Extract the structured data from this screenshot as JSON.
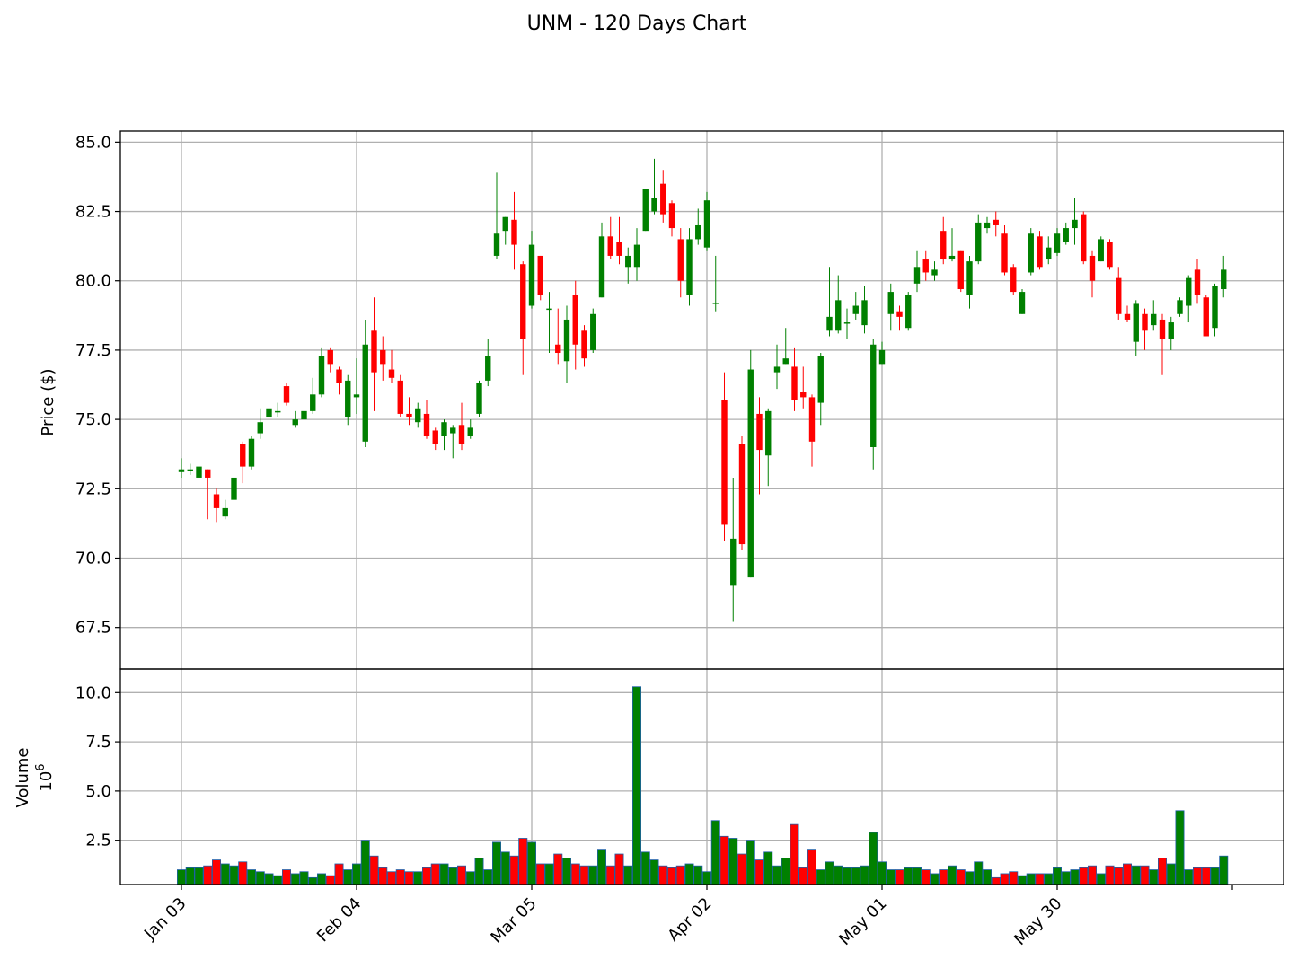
{
  "title": "UNM - 120 Days Chart",
  "colors": {
    "up": "#008000",
    "down": "#ff0000",
    "grid": "#b0b0b0",
    "axis": "#000000"
  },
  "chart_data": [
    {
      "type": "candlestick",
      "panel": "price",
      "ylabel": "Price ($)",
      "ylim": [
        66.0,
        85.4
      ],
      "yticks": [
        67.5,
        70.0,
        72.5,
        75.0,
        77.5,
        80.0,
        82.5,
        85.0
      ],
      "ytick_labels": [
        "67.5",
        "70.0",
        "72.5",
        "75.0",
        "77.5",
        "80.0",
        "82.5",
        "85.0"
      ],
      "x_tick_labels": [
        "Jan 03",
        "Feb 04",
        "Mar 05",
        "Apr 02",
        "May 01",
        "May 30"
      ],
      "x_tick_index": [
        0,
        20,
        40,
        60,
        80,
        100
      ],
      "grid": true,
      "candles": [
        [
          73.1,
          73.2,
          72.9,
          73.6
        ],
        [
          73.2,
          73.2,
          73.0,
          73.4
        ],
        [
          72.9,
          73.3,
          72.8,
          73.7
        ],
        [
          73.2,
          72.9,
          71.4,
          73.2
        ],
        [
          72.3,
          71.8,
          71.3,
          72.5
        ],
        [
          71.5,
          71.8,
          71.4,
          72.1
        ],
        [
          72.1,
          72.9,
          72.0,
          73.1
        ],
        [
          74.1,
          73.3,
          72.7,
          74.2
        ],
        [
          73.3,
          74.3,
          73.2,
          74.4
        ],
        [
          74.5,
          74.9,
          74.3,
          75.4
        ],
        [
          75.1,
          75.4,
          75.0,
          75.8
        ],
        [
          75.3,
          75.3,
          75.1,
          75.6
        ],
        [
          76.2,
          75.6,
          75.5,
          76.3
        ],
        [
          74.8,
          75.0,
          74.7,
          75.3
        ],
        [
          75.0,
          75.3,
          74.7,
          75.4
        ],
        [
          75.3,
          75.9,
          75.2,
          76.5
        ],
        [
          75.9,
          77.3,
          75.8,
          77.6
        ],
        [
          77.5,
          77.0,
          76.7,
          77.6
        ],
        [
          76.8,
          76.3,
          75.9,
          76.9
        ],
        [
          75.1,
          76.4,
          74.8,
          76.6
        ],
        [
          75.8,
          75.9,
          75.2,
          77.2
        ],
        [
          74.2,
          77.7,
          74.0,
          78.6
        ],
        [
          78.2,
          76.7,
          75.3,
          79.4
        ],
        [
          77.5,
          77.0,
          76.4,
          78.0
        ],
        [
          76.8,
          76.5,
          76.3,
          77.5
        ],
        [
          76.4,
          75.2,
          75.1,
          76.6
        ],
        [
          75.2,
          75.1,
          74.8,
          75.8
        ],
        [
          74.9,
          75.4,
          74.7,
          75.6
        ],
        [
          75.2,
          74.4,
          74.3,
          75.7
        ],
        [
          74.6,
          74.1,
          73.9,
          74.7
        ],
        [
          74.4,
          74.9,
          73.9,
          75.0
        ],
        [
          74.5,
          74.7,
          73.6,
          74.8
        ],
        [
          74.8,
          74.1,
          73.9,
          75.6
        ],
        [
          74.4,
          74.7,
          74.3,
          75.0
        ],
        [
          75.2,
          76.3,
          75.1,
          76.4
        ],
        [
          76.4,
          77.3,
          76.2,
          77.9
        ],
        [
          80.9,
          81.7,
          80.8,
          83.9
        ],
        [
          81.8,
          82.3,
          81.3,
          82.3
        ],
        [
          82.2,
          81.3,
          80.4,
          83.2
        ],
        [
          80.6,
          77.9,
          76.6,
          80.7
        ],
        [
          79.1,
          81.3,
          79.0,
          81.8
        ],
        [
          80.9,
          79.5,
          79.3,
          80.9
        ],
        [
          79.0,
          79.0,
          77.4,
          79.6
        ],
        [
          77.7,
          77.4,
          77.0,
          79.0
        ],
        [
          77.1,
          78.6,
          76.3,
          79.1
        ],
        [
          79.5,
          77.7,
          76.8,
          80.0
        ],
        [
          78.2,
          77.2,
          76.9,
          78.4
        ],
        [
          77.5,
          78.8,
          77.4,
          79.0
        ],
        [
          79.4,
          81.6,
          79.4,
          82.1
        ],
        [
          81.6,
          80.9,
          80.8,
          82.3
        ],
        [
          81.4,
          80.9,
          80.6,
          82.3
        ],
        [
          80.5,
          80.9,
          79.9,
          81.2
        ],
        [
          80.5,
          81.3,
          80.0,
          81.9
        ],
        [
          81.8,
          83.3,
          81.8,
          83.3
        ],
        [
          82.5,
          83.0,
          82.4,
          84.4
        ],
        [
          83.5,
          82.4,
          82.1,
          84.0
        ],
        [
          82.8,
          81.9,
          81.6,
          82.9
        ],
        [
          81.5,
          80.0,
          79.4,
          81.9
        ],
        [
          79.5,
          81.5,
          79.1,
          81.9
        ],
        [
          81.5,
          82.0,
          81.3,
          82.6
        ],
        [
          81.2,
          82.9,
          81.1,
          83.2
        ],
        [
          79.2,
          79.2,
          78.9,
          80.9
        ],
        [
          75.7,
          71.2,
          70.6,
          76.7
        ],
        [
          69.0,
          70.7,
          67.7,
          72.9
        ],
        [
          74.1,
          70.5,
          70.3,
          74.4
        ],
        [
          69.3,
          76.8,
          69.3,
          77.5
        ],
        [
          75.2,
          73.9,
          72.3,
          75.8
        ],
        [
          73.7,
          75.3,
          72.6,
          75.4
        ],
        [
          76.7,
          76.9,
          76.1,
          77.7
        ],
        [
          77.0,
          77.2,
          77.0,
          78.3
        ],
        [
          76.9,
          75.7,
          75.3,
          77.6
        ],
        [
          76.0,
          75.8,
          75.4,
          76.9
        ],
        [
          75.8,
          74.2,
          73.3,
          75.9
        ],
        [
          75.6,
          77.3,
          74.8,
          77.4
        ],
        [
          78.2,
          78.7,
          78.0,
          80.5
        ],
        [
          78.2,
          79.3,
          78.1,
          80.2
        ],
        [
          78.5,
          78.5,
          77.9,
          79.0
        ],
        [
          78.8,
          79.1,
          78.6,
          79.6
        ],
        [
          78.4,
          79.3,
          78.1,
          79.8
        ],
        [
          74.0,
          77.7,
          73.2,
          77.9
        ],
        [
          77.0,
          77.5,
          77.0,
          77.8
        ],
        [
          78.8,
          79.6,
          78.2,
          79.9
        ],
        [
          78.9,
          78.7,
          78.2,
          79.1
        ],
        [
          78.3,
          79.5,
          78.2,
          79.6
        ],
        [
          79.9,
          80.5,
          79.6,
          81.1
        ],
        [
          80.8,
          80.3,
          80.0,
          81.1
        ],
        [
          80.2,
          80.4,
          80.0,
          80.7
        ],
        [
          81.8,
          80.8,
          80.6,
          82.3
        ],
        [
          80.8,
          80.9,
          80.7,
          81.9
        ],
        [
          81.1,
          79.7,
          79.6,
          81.1
        ],
        [
          79.5,
          80.7,
          79.0,
          80.9
        ],
        [
          80.7,
          82.1,
          80.6,
          82.4
        ],
        [
          81.9,
          82.1,
          81.7,
          82.3
        ],
        [
          82.2,
          82.0,
          81.6,
          82.5
        ],
        [
          81.7,
          80.3,
          80.2,
          82.0
        ],
        [
          80.5,
          79.6,
          79.5,
          80.6
        ],
        [
          78.8,
          79.6,
          78.8,
          79.7
        ],
        [
          80.3,
          81.7,
          80.2,
          81.9
        ],
        [
          81.6,
          80.5,
          80.4,
          81.8
        ],
        [
          80.8,
          81.2,
          80.6,
          81.6
        ],
        [
          81.0,
          81.7,
          80.9,
          81.9
        ],
        [
          81.4,
          81.9,
          81.3,
          82.1
        ],
        [
          81.9,
          82.2,
          81.3,
          83.0
        ],
        [
          82.4,
          80.7,
          80.6,
          82.5
        ],
        [
          80.9,
          80.0,
          79.4,
          81.1
        ],
        [
          80.7,
          81.5,
          80.7,
          81.6
        ],
        [
          81.4,
          80.5,
          80.4,
          81.5
        ],
        [
          80.1,
          78.8,
          78.6,
          80.5
        ],
        [
          78.8,
          78.6,
          78.5,
          79.1
        ],
        [
          77.8,
          79.2,
          77.3,
          79.3
        ],
        [
          78.8,
          78.2,
          77.5,
          79.0
        ],
        [
          78.4,
          78.8,
          78.2,
          79.3
        ],
        [
          78.6,
          77.9,
          76.6,
          78.8
        ],
        [
          77.9,
          78.5,
          77.5,
          78.7
        ],
        [
          78.8,
          79.3,
          78.7,
          79.4
        ],
        [
          79.1,
          80.1,
          78.5,
          80.2
        ],
        [
          80.4,
          79.5,
          79.2,
          80.8
        ],
        [
          79.4,
          78.0,
          78.0,
          79.5
        ],
        [
          78.3,
          79.8,
          78.0,
          79.9
        ],
        [
          79.7,
          80.4,
          79.4,
          80.9
        ]
      ]
    },
    {
      "type": "bar",
      "panel": "volume",
      "ylabel": "Volume",
      "ylabel_multiplier": "10",
      "ylabel_exponent": "6",
      "ylim": [
        0.25,
        11.2
      ],
      "yticks": [
        2.5,
        5.0,
        7.5,
        10.0
      ],
      "ytick_labels": [
        "2.5",
        "5.0",
        "7.5",
        "10.0"
      ],
      "grid": true,
      "values": [
        1.0,
        1.1,
        1.1,
        1.2,
        1.5,
        1.3,
        1.2,
        1.4,
        1.0,
        0.9,
        0.8,
        0.7,
        1.0,
        0.8,
        0.9,
        0.6,
        0.8,
        0.7,
        1.3,
        1.0,
        1.3,
        2.5,
        1.7,
        1.1,
        0.9,
        1.0,
        0.9,
        0.9,
        1.1,
        1.3,
        1.3,
        1.1,
        1.2,
        0.9,
        1.6,
        1.0,
        2.4,
        1.9,
        1.7,
        2.6,
        2.4,
        1.3,
        1.3,
        1.8,
        1.6,
        1.3,
        1.2,
        1.2,
        2.0,
        1.2,
        1.8,
        1.2,
        10.3,
        1.9,
        1.5,
        1.2,
        1.1,
        1.2,
        1.3,
        1.2,
        0.9,
        3.5,
        2.7,
        2.6,
        1.8,
        2.5,
        1.5,
        1.9,
        1.2,
        1.6,
        3.3,
        1.1,
        2.0,
        1.0,
        1.4,
        1.2,
        1.1,
        1.1,
        1.2,
        2.9,
        1.4,
        1.0,
        1.0,
        1.1,
        1.1,
        1.0,
        0.8,
        1.0,
        1.2,
        1.0,
        0.9,
        1.4,
        1.0,
        0.6,
        0.8,
        0.9,
        0.7,
        0.8,
        0.8,
        0.8,
        1.1,
        0.9,
        1.0,
        1.1,
        1.2,
        0.8,
        1.2,
        1.1,
        1.3,
        1.2,
        1.2,
        1.0,
        1.6,
        1.3,
        4.0,
        1.0,
        1.1,
        1.1,
        1.1,
        1.7
      ]
    }
  ]
}
